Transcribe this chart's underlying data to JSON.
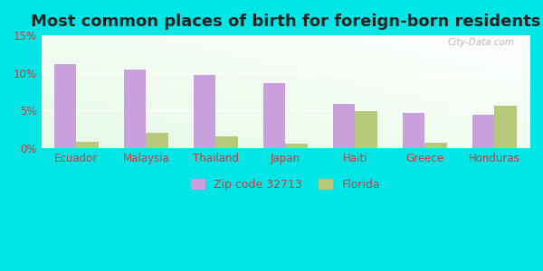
{
  "title": "Most common places of birth for foreign-born residents",
  "categories": [
    "Ecuador",
    "Malaysia",
    "Thailand",
    "Japan",
    "Haiti",
    "Greece",
    "Honduras"
  ],
  "zip_values": [
    11.1,
    10.4,
    9.7,
    8.6,
    5.9,
    4.7,
    4.5
  ],
  "florida_values": [
    0.9,
    2.1,
    1.6,
    0.6,
    4.9,
    0.8,
    5.7
  ],
  "zip_color": "#c9a0dc",
  "florida_color": "#b8c87a",
  "background_outer": "#00e5e5",
  "ylim": [
    0,
    15
  ],
  "yticks": [
    0,
    5,
    10,
    15
  ],
  "ytick_labels": [
    "0%",
    "5%",
    "10%",
    "15%"
  ],
  "legend_zip_label": "Zip code 32713",
  "legend_florida_label": "Florida",
  "bar_width": 0.32,
  "title_fontsize": 13,
  "watermark": "City-Data.com",
  "tick_label_color": "#c04040",
  "title_color": "#222222"
}
